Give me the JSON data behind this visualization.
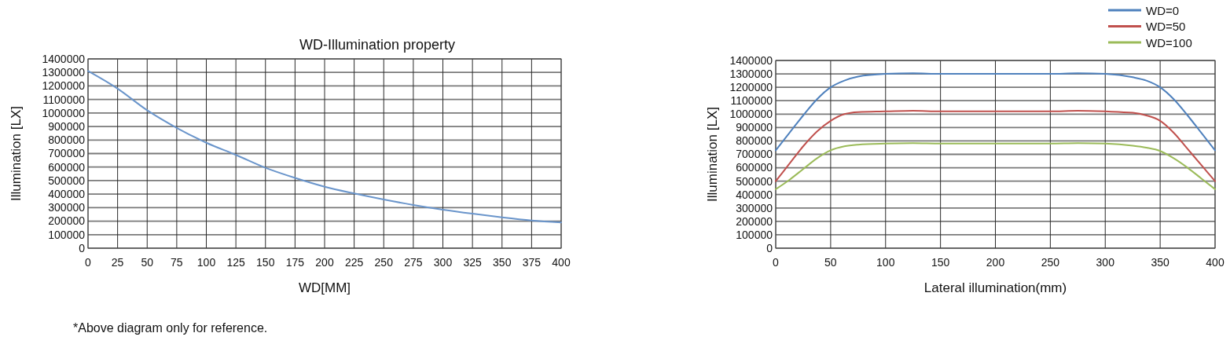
{
  "chart_data": [
    {
      "type": "line",
      "title": "WD-Illumination property",
      "xlabel": "WD[MM]",
      "ylabel": "Illumination [LX]",
      "annotations": [
        "*Above diagram only for reference."
      ],
      "xlim": [
        0,
        400
      ],
      "xticks": [
        0,
        25,
        50,
        75,
        100,
        125,
        150,
        175,
        200,
        225,
        250,
        275,
        300,
        325,
        350,
        375,
        400
      ],
      "ylim": [
        0,
        1400000
      ],
      "yticks": [
        0,
        100000,
        200000,
        300000,
        400000,
        500000,
        600000,
        700000,
        800000,
        900000,
        1000000,
        1100000,
        1200000,
        1300000,
        1400000
      ],
      "grid": true,
      "x": [
        0,
        25,
        50,
        75,
        100,
        125,
        150,
        175,
        200,
        225,
        250,
        275,
        300,
        325,
        350,
        375,
        400
      ],
      "series": [
        {
          "color": "#6a95cb",
          "values": [
            1310000,
            1180000,
            1020000,
            890000,
            780000,
            690000,
            595000,
            520000,
            455000,
            405000,
            360000,
            320000,
            285000,
            255000,
            228000,
            205000,
            190000
          ]
        }
      ]
    },
    {
      "type": "line",
      "xlabel": "Lateral illumination(mm)",
      "ylabel": "Illumination [LX]",
      "xlim": [
        0,
        400
      ],
      "xticks": [
        0,
        50,
        100,
        150,
        200,
        250,
        300,
        350,
        400
      ],
      "ylim": [
        0,
        1400000
      ],
      "yticks": [
        0,
        100000,
        200000,
        300000,
        400000,
        500000,
        600000,
        700000,
        800000,
        900000,
        1000000,
        1100000,
        1200000,
        1300000,
        1400000
      ],
      "grid": true,
      "legend": "top right",
      "x": [
        0,
        12.5,
        25,
        37.5,
        50,
        62.5,
        75,
        100,
        125,
        150,
        200,
        250,
        275,
        300,
        325,
        337.5,
        350,
        362.5,
        375,
        387.5,
        400
      ],
      "series": [
        {
          "name": "WD=0",
          "color": "#4f81bd",
          "values": [
            730000,
            860000,
            990000,
            1110000,
            1200000,
            1250000,
            1280000,
            1300000,
            1305000,
            1300000,
            1300000,
            1300000,
            1305000,
            1300000,
            1275000,
            1250000,
            1200000,
            1110000,
            990000,
            860000,
            730000
          ]
        },
        {
          "name": "WD=50",
          "color": "#c0504d",
          "values": [
            500000,
            630000,
            760000,
            870000,
            950000,
            1000000,
            1015000,
            1020000,
            1025000,
            1020000,
            1020000,
            1020000,
            1025000,
            1020000,
            1010000,
            990000,
            950000,
            860000,
            740000,
            620000,
            500000
          ]
        },
        {
          "name": "WD=100",
          "color": "#9bbb59",
          "values": [
            440000,
            510000,
            590000,
            670000,
            730000,
            760000,
            772000,
            780000,
            783000,
            780000,
            780000,
            780000,
            783000,
            780000,
            765000,
            750000,
            725000,
            670000,
            600000,
            520000,
            440000
          ]
        }
      ]
    }
  ]
}
